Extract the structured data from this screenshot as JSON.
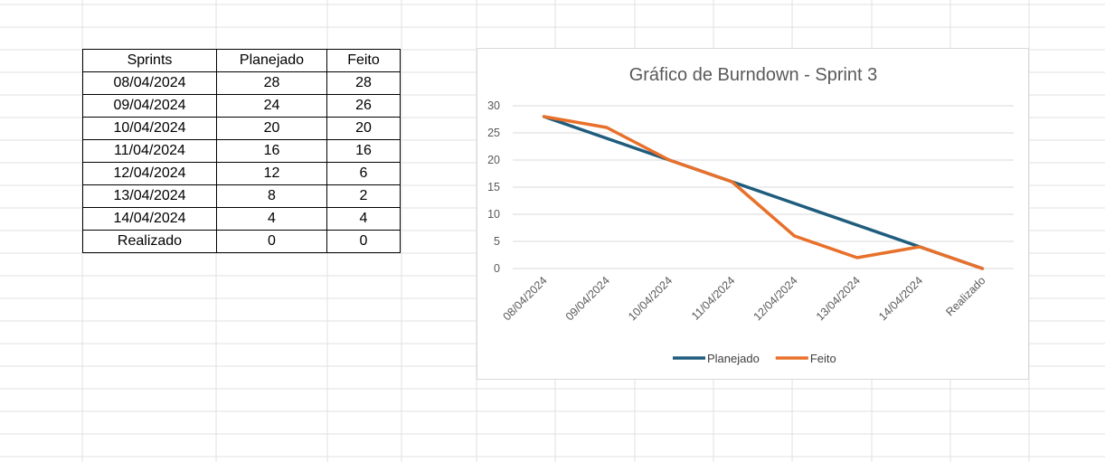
{
  "table": {
    "headers": [
      "Sprints",
      "Planejado",
      "Feito"
    ],
    "rows": [
      [
        "08/04/2024",
        "28",
        "28"
      ],
      [
        "09/04/2024",
        "24",
        "26"
      ],
      [
        "10/04/2024",
        "20",
        "20"
      ],
      [
        "11/04/2024",
        "16",
        "16"
      ],
      [
        "12/04/2024",
        "12",
        "6"
      ],
      [
        "13/04/2024",
        "8",
        "2"
      ],
      [
        "14/04/2024",
        "4",
        "4"
      ],
      [
        "Realizado",
        "0",
        "0"
      ]
    ]
  },
  "chart_data": {
    "type": "line",
    "title": "Gráfico de Burndown - Sprint 3",
    "categories": [
      "08/04/2024",
      "09/04/2024",
      "10/04/2024",
      "11/04/2024",
      "12/04/2024",
      "13/04/2024",
      "14/04/2024",
      "Realizado"
    ],
    "series": [
      {
        "name": "Planejado",
        "color": "#1f5c7d",
        "values": [
          28,
          24,
          20,
          16,
          12,
          8,
          4,
          0
        ]
      },
      {
        "name": "Feito",
        "color": "#e8702a",
        "values": [
          28,
          26,
          20,
          16,
          6,
          2,
          4,
          0
        ]
      }
    ],
    "yticks": [
      0,
      5,
      10,
      15,
      20,
      25,
      30
    ],
    "ylim": [
      0,
      30
    ],
    "grid": true,
    "legend_position": "bottom"
  }
}
